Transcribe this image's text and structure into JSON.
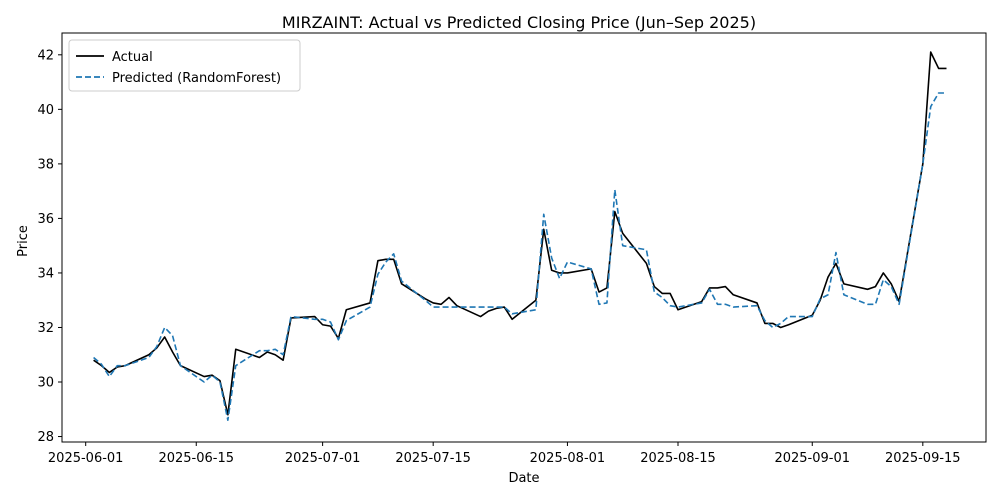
{
  "chart_data": {
    "type": "line",
    "title": "MIRZAINT: Actual vs Predicted Closing Price (Jun–Sep 2025)",
    "xlabel": "Date",
    "ylabel": "Price",
    "xlim": [
      "2025-05-29",
      "2025-09-23"
    ],
    "ylim": [
      27.8,
      42.8
    ],
    "grid": false,
    "legend_position": "top-left",
    "x_ticks": [
      "2025-06-01",
      "2025-06-15",
      "2025-07-01",
      "2025-07-15",
      "2025-08-01",
      "2025-08-15",
      "2025-09-01",
      "2025-09-15"
    ],
    "y_ticks": [
      28,
      30,
      32,
      34,
      36,
      38,
      40,
      42
    ],
    "x": [
      "2025-06-02",
      "2025-06-03",
      "2025-06-04",
      "2025-06-05",
      "2025-06-06",
      "2025-06-09",
      "2025-06-10",
      "2025-06-11",
      "2025-06-12",
      "2025-06-13",
      "2025-06-16",
      "2025-06-17",
      "2025-06-18",
      "2025-06-19",
      "2025-06-20",
      "2025-06-23",
      "2025-06-24",
      "2025-06-25",
      "2025-06-26",
      "2025-06-27",
      "2025-06-30",
      "2025-07-01",
      "2025-07-02",
      "2025-07-03",
      "2025-07-04",
      "2025-07-07",
      "2025-07-08",
      "2025-07-09",
      "2025-07-10",
      "2025-07-11",
      "2025-07-14",
      "2025-07-15",
      "2025-07-16",
      "2025-07-17",
      "2025-07-18",
      "2025-07-21",
      "2025-07-22",
      "2025-07-23",
      "2025-07-24",
      "2025-07-25",
      "2025-07-28",
      "2025-07-29",
      "2025-07-30",
      "2025-07-31",
      "2025-08-01",
      "2025-08-04",
      "2025-08-05",
      "2025-08-06",
      "2025-08-07",
      "2025-08-08",
      "2025-08-11",
      "2025-08-12",
      "2025-08-13",
      "2025-08-14",
      "2025-08-15",
      "2025-08-18",
      "2025-08-19",
      "2025-08-20",
      "2025-08-21",
      "2025-08-22",
      "2025-08-25",
      "2025-08-26",
      "2025-08-27",
      "2025-08-28",
      "2025-08-29",
      "2025-09-01",
      "2025-09-02",
      "2025-09-03",
      "2025-09-04",
      "2025-09-05",
      "2025-09-08",
      "2025-09-09",
      "2025-09-10",
      "2025-09-11",
      "2025-09-12",
      "2025-09-15",
      "2025-09-16",
      "2025-09-17",
      "2025-09-18"
    ],
    "series": [
      {
        "name": "Actual",
        "color": "#000000",
        "dash": "solid",
        "values": [
          30.8,
          30.6,
          30.35,
          30.55,
          30.6,
          31.0,
          31.25,
          31.65,
          31.1,
          30.6,
          30.2,
          30.25,
          30.05,
          28.8,
          31.2,
          30.9,
          31.1,
          31.0,
          30.8,
          32.35,
          32.4,
          32.1,
          32.05,
          31.6,
          32.65,
          32.9,
          34.45,
          34.5,
          34.5,
          33.6,
          33.05,
          32.9,
          32.85,
          33.1,
          32.8,
          32.4,
          32.6,
          32.7,
          32.75,
          32.3,
          33.0,
          35.6,
          34.1,
          34.0,
          34.0,
          34.15,
          33.3,
          33.45,
          36.25,
          35.45,
          34.35,
          33.5,
          33.25,
          33.25,
          32.65,
          32.95,
          33.45,
          33.45,
          33.5,
          33.2,
          32.9,
          32.15,
          32.15,
          32.0,
          32.1,
          32.45,
          33.0,
          33.85,
          34.35,
          33.6,
          33.4,
          33.5,
          34.0,
          33.6,
          32.95,
          38.0,
          42.1,
          41.5,
          41.5
        ]
      },
      {
        "name": "Predicted (RandomForest)",
        "color": "#1f77b4",
        "dash": "dashed",
        "values": [
          30.9,
          30.65,
          30.2,
          30.6,
          30.6,
          30.9,
          31.3,
          32.0,
          31.7,
          30.6,
          30.0,
          30.25,
          30.0,
          28.6,
          30.6,
          31.15,
          31.15,
          31.2,
          31.0,
          32.4,
          32.3,
          32.3,
          32.2,
          31.55,
          32.25,
          32.75,
          33.95,
          34.4,
          34.7,
          33.7,
          33.0,
          32.75,
          32.75,
          32.75,
          32.75,
          32.75,
          32.75,
          32.75,
          32.75,
          32.5,
          32.65,
          36.15,
          34.55,
          33.8,
          34.4,
          34.15,
          32.85,
          32.9,
          37.05,
          35.0,
          34.85,
          33.3,
          33.1,
          32.8,
          32.75,
          32.9,
          33.4,
          32.85,
          32.85,
          32.75,
          32.8,
          32.25,
          32.0,
          32.15,
          32.4,
          32.4,
          33.05,
          33.2,
          34.75,
          33.2,
          32.85,
          32.85,
          33.75,
          33.5,
          32.85,
          38.0,
          40.1,
          40.6,
          40.6
        ]
      }
    ]
  }
}
